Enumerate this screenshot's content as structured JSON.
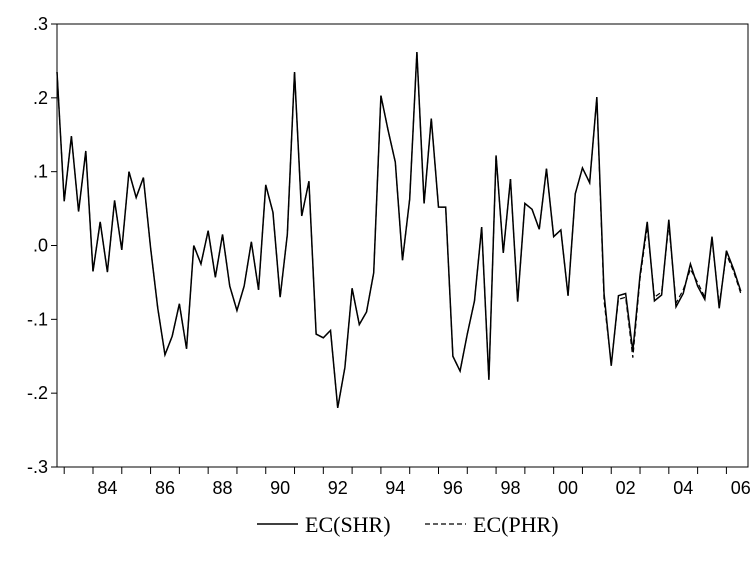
{
  "chart_data": {
    "type": "line",
    "title": "",
    "xlabel": "",
    "ylabel": "",
    "xlim": [
      1982.75,
      2006.75
    ],
    "ylim": [
      -0.3,
      0.3
    ],
    "yticks": [
      0.3,
      0.2,
      0.1,
      0.0,
      -0.1,
      -0.2,
      -0.3
    ],
    "ytick_labels": [
      ".3",
      ".2",
      ".1",
      ".0",
      "-.1",
      "-.2",
      "-.3"
    ],
    "xticks": [
      1984,
      1986,
      1988,
      1990,
      1992,
      1994,
      1996,
      1998,
      2000,
      2002,
      2004,
      2006
    ],
    "xtick_labels": [
      "84",
      "86",
      "88",
      "90",
      "92",
      "94",
      "96",
      "98",
      "00",
      "02",
      "04",
      "06"
    ],
    "grid": false,
    "legend_position": "bottom-center",
    "x_start": 1982.75,
    "x_step": 0.25,
    "series": [
      {
        "name": "EC(SHR)",
        "style": "solid",
        "color": "#000000",
        "values": [
          0.235,
          0.06,
          0.148,
          0.046,
          0.128,
          -0.035,
          0.032,
          -0.036,
          0.061,
          -0.006,
          0.1,
          0.065,
          0.092,
          -0.003,
          -0.085,
          -0.148,
          -0.123,
          -0.079,
          -0.14,
          0.0,
          -0.025,
          0.02,
          -0.043,
          0.015,
          -0.055,
          -0.088,
          -0.055,
          0.005,
          -0.06,
          0.082,
          0.045,
          -0.07,
          0.015,
          0.235,
          0.04,
          0.087,
          -0.12,
          -0.125,
          -0.115,
          -0.22,
          -0.165,
          -0.058,
          -0.107,
          -0.09,
          -0.037,
          0.203,
          0.156,
          0.113,
          -0.02,
          0.063,
          0.262,
          0.057,
          0.172,
          0.052,
          0.052,
          -0.15,
          -0.17,
          -0.12,
          -0.075,
          0.025,
          -0.182,
          0.122,
          -0.01,
          0.09,
          -0.076,
          0.057,
          0.049,
          0.022,
          0.104,
          0.012,
          0.021,
          -0.068,
          0.07,
          0.105,
          0.085,
          0.201,
          -0.065,
          -0.163,
          -0.068,
          -0.065,
          -0.143,
          -0.04,
          0.032,
          -0.075,
          -0.067,
          0.035,
          -0.083,
          -0.065,
          -0.025,
          -0.055,
          -0.073,
          0.012,
          -0.085,
          -0.007,
          -0.032,
          -0.062
        ]
      },
      {
        "name": "EC(PHR)",
        "style": "dashed",
        "color": "#000000",
        "values": [
          0.235,
          0.06,
          0.148,
          0.046,
          0.128,
          -0.035,
          0.032,
          -0.036,
          0.061,
          -0.006,
          0.1,
          0.065,
          0.092,
          -0.003,
          -0.085,
          -0.148,
          -0.123,
          -0.079,
          -0.14,
          0.0,
          -0.025,
          0.02,
          -0.043,
          0.015,
          -0.055,
          -0.088,
          -0.055,
          0.005,
          -0.06,
          0.082,
          0.045,
          -0.07,
          0.015,
          0.235,
          0.04,
          0.087,
          -0.12,
          -0.125,
          -0.115,
          -0.22,
          -0.165,
          -0.058,
          -0.107,
          -0.09,
          -0.037,
          0.203,
          0.156,
          0.113,
          -0.02,
          0.063,
          0.262,
          0.057,
          0.172,
          0.052,
          0.052,
          -0.15,
          -0.17,
          -0.12,
          -0.075,
          0.025,
          -0.182,
          0.122,
          -0.01,
          0.09,
          -0.076,
          0.057,
          0.049,
          0.022,
          0.104,
          0.012,
          0.021,
          -0.068,
          0.07,
          0.105,
          0.085,
          0.201,
          -0.075,
          -0.16,
          -0.073,
          -0.07,
          -0.152,
          -0.045,
          0.026,
          -0.07,
          -0.063,
          0.028,
          -0.078,
          -0.06,
          -0.032,
          -0.05,
          -0.07,
          0.008,
          -0.08,
          -0.012,
          -0.035,
          -0.065
        ]
      }
    ]
  }
}
